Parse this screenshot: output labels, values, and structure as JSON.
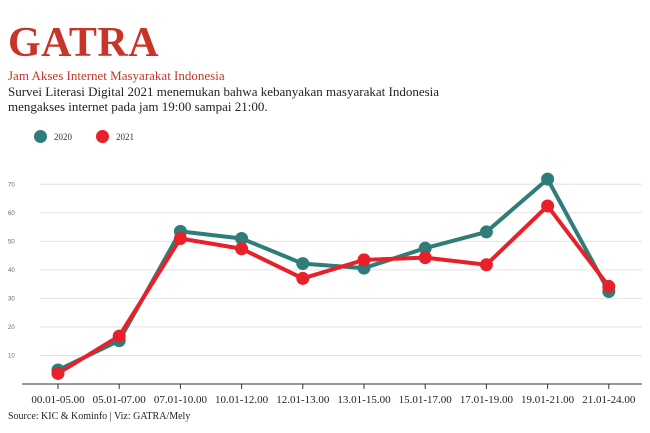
{
  "brand": {
    "name": "GATRA"
  },
  "header": {
    "subtitle": "Jam Akses Internet Masyarakat Indonesia",
    "description": "Survei Literasi Digital 2021 menemukan bahwa kebanyakan masyarakat Indonesia mengakses internet pada jam 19:00 sampai 21:00."
  },
  "colors": {
    "brand": "#c8342a",
    "series_2020": "#2e7d78",
    "series_2021": "#e8202a"
  },
  "legend": {
    "label_2020": "2020",
    "label_2021": "2021"
  },
  "chart_data": {
    "type": "line",
    "title": "Jam Akses Internet Masyarakat Indonesia",
    "categories": [
      "00.01-05.00",
      "05.01-07.00",
      "07.01-10.00",
      "10.01-12.00",
      "12.01-13.00",
      "13.01-15.00",
      "15.01-17.00",
      "17.01-19.00",
      "19.01-21.00",
      "21.01-24.00"
    ],
    "y_ticks": [
      10,
      20,
      30,
      40,
      50,
      60,
      70
    ],
    "ylim": [
      0,
      75
    ],
    "grid": true,
    "legend_position": "top-left",
    "series": [
      {
        "name": "2020",
        "color": "#2e7d78",
        "values": [
          4.9,
          15.2,
          53.5,
          51.0,
          42.2,
          40.6,
          47.6,
          53.3,
          71.8,
          32.4
        ]
      },
      {
        "name": "2021",
        "color": "#e8202a",
        "values": [
          3.7,
          16.8,
          51.0,
          47.4,
          37.0,
          43.5,
          44.3,
          41.8,
          62.4,
          34.2
        ]
      }
    ]
  },
  "footer": {
    "source": "Source: KIC & Kominfo | Viz: GATRA/Mely"
  }
}
